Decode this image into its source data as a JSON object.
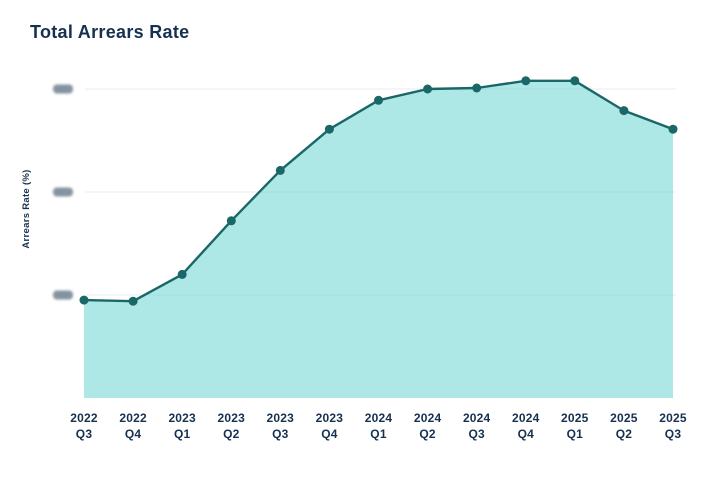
{
  "chart_data": {
    "type": "area",
    "title": "Total Arrears Rate",
    "xlabel": "",
    "ylabel": "Arrears Rate (%)",
    "categories": [
      "2022 Q3",
      "2022 Q4",
      "2023 Q1",
      "2023 Q2",
      "2023 Q3",
      "2023 Q4",
      "2024 Q1",
      "2024 Q2",
      "2024 Q3",
      "2024 Q4",
      "2025 Q1",
      "2025 Q2",
      "2025 Q3"
    ],
    "values": [
      0.95,
      0.94,
      1.2,
      1.72,
      2.21,
      2.61,
      2.89,
      3.0,
      3.01,
      3.08,
      3.08,
      2.79,
      2.61
    ],
    "ylim": [
      0,
      3.28
    ],
    "y_gridlines": [
      1,
      2,
      3
    ],
    "y_tick_labels_redacted": true,
    "grid": "horizontal",
    "legend": "none",
    "colors": {
      "title_text": "#16314f",
      "axis_text": "#16314f",
      "line": "#1b6768",
      "point": "#1b6768",
      "area_fill": "#5bd1cd",
      "area_fill_opacity": "0.5",
      "gridline": "#e8ebee",
      "redacted_tick_pill": "#8593a1",
      "background": "#ffffff"
    }
  }
}
